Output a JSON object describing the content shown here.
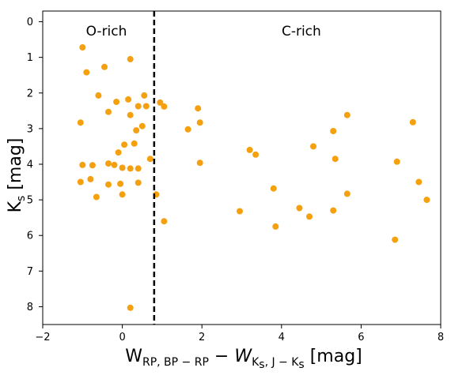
{
  "chart_data": {
    "type": "scatter",
    "xlabel": {
      "main_1": "W",
      "sub_1": "RP, BP − RP",
      "dash": " − ",
      "main_2": "W",
      "sub_2": "K",
      "subsub_2": "s",
      "sub_2b": ", J − K",
      "subsub_2b": "s",
      "unit": " [mag]"
    },
    "ylabel": {
      "main": "K",
      "sub": "s",
      "unit": " [mag]"
    },
    "xlim": [
      -2,
      8
    ],
    "ylim": [
      8.5,
      -0.3
    ],
    "y_inverted": true,
    "x_ticks": [
      -2,
      0,
      2,
      4,
      6,
      8
    ],
    "x_tick_labels": [
      "−2",
      "0",
      "2",
      "4",
      "6",
      "8"
    ],
    "y_ticks": [
      0,
      1,
      2,
      3,
      4,
      5,
      6,
      7,
      8
    ],
    "y_tick_labels": [
      "0",
      "1",
      "2",
      "3",
      "4",
      "5",
      "6",
      "7",
      "8"
    ],
    "grid": false,
    "divider_x": 0.8,
    "regions": [
      {
        "label": "O-rich",
        "x": -0.4,
        "y": 0.25
      },
      {
        "label": "C-rich",
        "x": 4.5,
        "y": 0.25
      }
    ],
    "marker_color": "#f5a00f",
    "divider_color": "#000000",
    "points": [
      [
        -1.0,
        0.72
      ],
      [
        0.2,
        1.05
      ],
      [
        -0.9,
        1.42
      ],
      [
        -0.45,
        1.27
      ],
      [
        -0.6,
        2.07
      ],
      [
        -0.35,
        2.53
      ],
      [
        -0.15,
        2.25
      ],
      [
        0.15,
        2.18
      ],
      [
        0.55,
        2.07
      ],
      [
        0.4,
        2.37
      ],
      [
        0.6,
        2.37
      ],
      [
        0.95,
        2.27
      ],
      [
        1.05,
        2.38
      ],
      [
        1.9,
        2.43
      ],
      [
        -1.05,
        2.83
      ],
      [
        0.2,
        2.62
      ],
      [
        0.5,
        2.93
      ],
      [
        0.35,
        3.05
      ],
      [
        -0.1,
        3.67
      ],
      [
        0.05,
        3.45
      ],
      [
        0.3,
        3.42
      ],
      [
        0.7,
        3.85
      ],
      [
        -1.0,
        4.02
      ],
      [
        -0.75,
        4.03
      ],
      [
        -0.35,
        3.98
      ],
      [
        -0.2,
        4.02
      ],
      [
        0.0,
        4.1
      ],
      [
        0.2,
        4.12
      ],
      [
        0.4,
        4.12
      ],
      [
        -1.05,
        4.5
      ],
      [
        -0.8,
        4.42
      ],
      [
        -0.35,
        4.57
      ],
      [
        -0.05,
        4.55
      ],
      [
        0.4,
        4.52
      ],
      [
        -0.65,
        4.92
      ],
      [
        0.0,
        4.85
      ],
      [
        0.85,
        4.85
      ],
      [
        1.05,
        5.6
      ],
      [
        0.2,
        8.03
      ],
      [
        1.65,
        3.02
      ],
      [
        1.95,
        2.83
      ],
      [
        1.95,
        3.96
      ],
      [
        3.2,
        3.6
      ],
      [
        3.35,
        3.73
      ],
      [
        2.95,
        5.32
      ],
      [
        3.8,
        4.68
      ],
      [
        3.85,
        5.75
      ],
      [
        4.45,
        5.23
      ],
      [
        4.7,
        5.47
      ],
      [
        4.8,
        3.5
      ],
      [
        5.3,
        3.07
      ],
      [
        5.35,
        3.85
      ],
      [
        5.3,
        5.3
      ],
      [
        5.65,
        2.62
      ],
      [
        5.65,
        4.83
      ],
      [
        6.9,
        3.93
      ],
      [
        7.3,
        2.82
      ],
      [
        7.45,
        4.5
      ],
      [
        7.65,
        5.0
      ],
      [
        6.85,
        6.12
      ]
    ]
  }
}
